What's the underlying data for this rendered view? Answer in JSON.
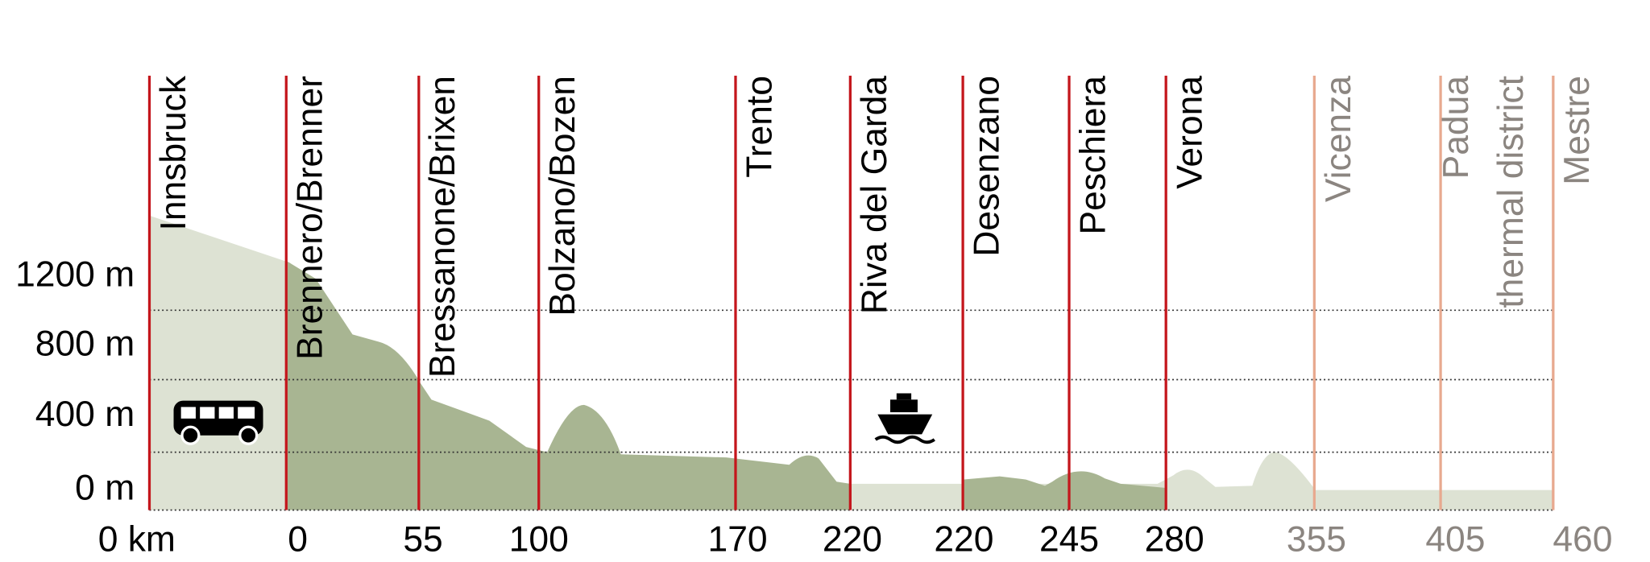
{
  "y_axis": {
    "labels": [
      "1200 m",
      "800 m",
      "400 m",
      "0 m"
    ]
  },
  "stations": [
    {
      "lines": [
        "Innsbruck"
      ],
      "km": "0 km",
      "color": "#c4161c",
      "text_color": "#000000"
    },
    {
      "lines": [
        "Brennero/Brenner"
      ],
      "km": "0",
      "color": "#c4161c",
      "text_color": "#000000"
    },
    {
      "lines": [
        "Bressanone/Brixen"
      ],
      "km": "55",
      "color": "#c4161c",
      "text_color": "#000000"
    },
    {
      "lines": [
        "Bolzano/Bozen"
      ],
      "km": "100",
      "color": "#c4161c",
      "text_color": "#000000"
    },
    {
      "lines": [
        "Trento"
      ],
      "km": "170",
      "color": "#c4161c",
      "text_color": "#000000"
    },
    {
      "lines": [
        "Riva del Garda"
      ],
      "km": "220",
      "color": "#c4161c",
      "text_color": "#000000"
    },
    {
      "lines": [
        "Desenzano"
      ],
      "km": "220",
      "color": "#c4161c",
      "text_color": "#000000"
    },
    {
      "lines": [
        "Peschiera"
      ],
      "km": "245",
      "color": "#c4161c",
      "text_color": "#000000"
    },
    {
      "lines": [
        "Verona"
      ],
      "km": "280",
      "color": "#c4161c",
      "text_color": "#000000"
    },
    {
      "lines": [
        "Vicenza"
      ],
      "km": "355",
      "color": "#e8a98f",
      "text_color": "#8b8580"
    },
    {
      "lines": [
        "Padua",
        "thermal district"
      ],
      "km": "405",
      "color": "#e8a98f",
      "text_color": "#8b8580"
    },
    {
      "lines": [
        "Mestre"
      ],
      "km": "460",
      "color": "#e8a98f",
      "text_color": "#8b8580"
    }
  ]
}
